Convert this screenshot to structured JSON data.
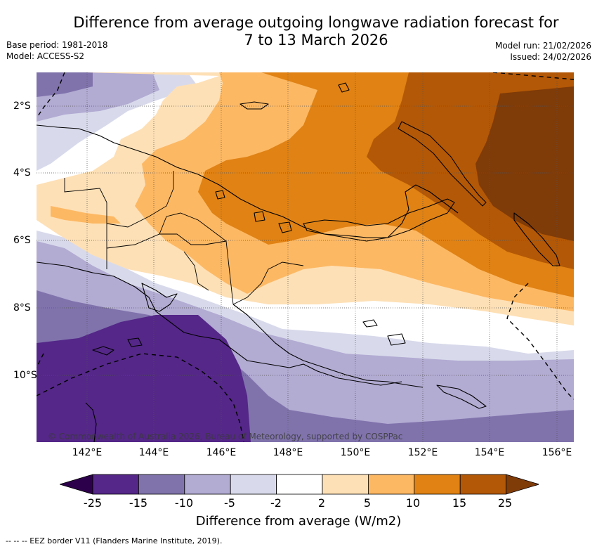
{
  "title_line1": "Difference from average outgoing longwave radiation forecast for",
  "title_line2": "7 to 13 March 2026",
  "base_period": "Base period: 1981-2018",
  "model": "Model: ACCESS-S2",
  "model_run": "Model run: 21/02/2026",
  "issued": "Issued: 24/02/2026",
  "copyright": "© Commonwealth of Australia 2026, Bureau of Meteorology, supported by COSPPac",
  "lon_labels": [
    "142°E",
    "144°E",
    "146°E",
    "148°E",
    "150°E",
    "152°E",
    "154°E",
    "156°E"
  ],
  "lat_labels": [
    "2°S",
    "4°S",
    "6°S",
    "8°S",
    "10°S"
  ],
  "colorbar": {
    "ticks": [
      "-25",
      "-15",
      "-10",
      "-5",
      "-2",
      "2",
      "5",
      "10",
      "15",
      "25"
    ],
    "colors": [
      "#2d004b",
      "#542788",
      "#8073ac",
      "#b2abd2",
      "#d8daeb",
      "#ffffff",
      "#fee0b6",
      "#fdb863",
      "#e08214",
      "#b35806",
      "#7f3b08"
    ],
    "label": "Difference from average (W/m2)"
  },
  "footer": "-- -- -- EEZ border V11 (Flanders Marine Institute, 2019)."
}
